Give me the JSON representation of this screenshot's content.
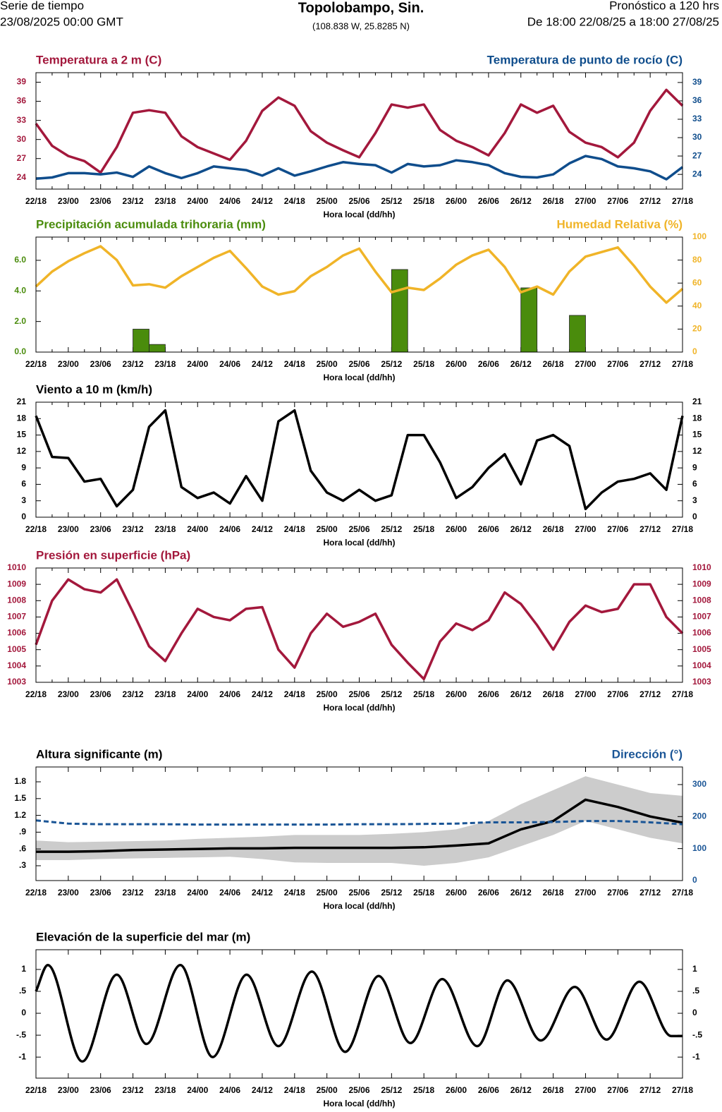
{
  "header": {
    "left_top": "Serie de tiempo",
    "left_bottom": "23/08/2025 00:00 GMT",
    "title": "Topolobampo, Sin.",
    "coords": "(108.838 W, 25.8285 N)",
    "right_top": "Pronóstico a 120 hrs",
    "right_bottom": "De 18:00 22/08/25 a 18:00 27/08/25"
  },
  "chart_data": [
    {
      "type": "line",
      "xlabel": "Hora local (dd/hh)",
      "categories": [
        "22/18",
        null,
        "23/00",
        null,
        "23/06",
        null,
        "23/12",
        null,
        "23/18",
        null,
        "24/00",
        null,
        "24/06",
        null,
        "24/12",
        null,
        "24/18",
        null,
        "25/00",
        null,
        "25/06",
        null,
        "25/12",
        null,
        "25/18",
        null,
        "26/00",
        null,
        "26/06",
        null,
        "26/12",
        null,
        "26/18",
        null,
        "27/00",
        null,
        "27/06",
        null,
        "27/12",
        null,
        "27/18"
      ],
      "ylim": [
        22.2,
        40.5
      ],
      "yticks": [
        24,
        27,
        30,
        33,
        36,
        39
      ],
      "y2lim": [
        21.6,
        40.6
      ],
      "y2ticks": [
        24,
        27,
        30,
        33,
        36,
        39
      ],
      "series": [
        {
          "name": "Temperatura a 2 m (C)",
          "color": "#a3183c",
          "values": [
            32.5,
            29,
            27.4,
            26.6,
            24.8,
            28.8,
            34.2,
            34.6,
            34.2,
            30.5,
            28.8,
            27.8,
            26.8,
            29.8,
            34.5,
            36.6,
            35.3,
            31.3,
            29.5,
            28.3,
            27.2,
            31,
            35.5,
            35,
            35.5,
            31.5,
            29.8,
            28.8,
            27.5,
            31,
            35.5,
            34.2,
            35.3,
            31.2,
            29.5,
            28.8,
            27.2,
            29.5,
            34.5,
            37.8,
            35.3
          ]
        },
        {
          "name": "Temperatura de punto de rocío (C)",
          "color": "#0f4d8c",
          "axis": "y2",
          "values": [
            23.3,
            23.5,
            24.2,
            24.2,
            24,
            24.3,
            23.6,
            25.3,
            24.2,
            23.4,
            24.2,
            25.3,
            25,
            24.7,
            23.8,
            25,
            23.8,
            24.5,
            25.3,
            26,
            25.7,
            25.5,
            24.3,
            25.7,
            25.3,
            25.5,
            26.3,
            26,
            25.5,
            24.2,
            23.6,
            23.5,
            24,
            25.8,
            27,
            26.5,
            25.3,
            25,
            24.5,
            23.2,
            25.2
          ]
        }
      ]
    },
    {
      "type": "bar",
      "xlabel": "Hora local (dd/hh)",
      "categories": [
        "22/18",
        null,
        "23/00",
        null,
        "23/06",
        null,
        "23/12",
        null,
        "23/18",
        null,
        "24/00",
        null,
        "24/06",
        null,
        "24/12",
        null,
        "24/18",
        null,
        "25/00",
        null,
        "25/06",
        null,
        "25/12",
        null,
        "25/18",
        null,
        "26/00",
        null,
        "26/06",
        null,
        "26/12",
        null,
        "26/18",
        null,
        "27/00",
        null,
        "27/06",
        null,
        "27/12",
        null,
        "27/18"
      ],
      "ylim": [
        0,
        7.52
      ],
      "yticks": [
        {
          "value": 0,
          "label": "0.0"
        },
        {
          "value": 2,
          "label": "2.0"
        },
        {
          "value": 4,
          "label": "4.0"
        },
        {
          "value": 6,
          "label": "6.0"
        }
      ],
      "y2lim": [
        0,
        100
      ],
      "y2ticks": [
        0,
        20,
        40,
        60,
        80,
        100
      ],
      "series": [
        {
          "name": "Precipitación acumulada trihoraria (mm)",
          "color": "#4a8c0c",
          "values": [
            0,
            0,
            0,
            0,
            0,
            0,
            1.5,
            0.5,
            0,
            0,
            0,
            0,
            0,
            0,
            0,
            0,
            0,
            0,
            0,
            0,
            0,
            0,
            5.4,
            0,
            0,
            0,
            0,
            0,
            0,
            0,
            4.2,
            0,
            0,
            2.4,
            0,
            0,
            0,
            0,
            0,
            0,
            0
          ]
        },
        {
          "name": "Humedad Relativa (%)",
          "color": "#f0b428",
          "axis": "y2",
          "type": "line",
          "values": [
            57,
            70,
            79,
            86,
            92,
            80,
            58,
            59,
            56,
            66,
            74,
            82,
            88,
            73,
            57,
            50,
            53,
            66,
            74,
            84,
            90,
            70,
            52,
            56,
            54,
            64,
            76,
            84,
            89,
            74,
            52,
            57,
            50,
            70,
            83,
            87,
            91,
            75,
            57,
            43,
            55
          ]
        }
      ]
    },
    {
      "type": "line",
      "xlabel": "Hora local (dd/hh)",
      "categories": [
        "22/18",
        null,
        "23/00",
        null,
        "23/06",
        null,
        "23/12",
        null,
        "23/18",
        null,
        "24/00",
        null,
        "24/06",
        null,
        "24/12",
        null,
        "24/18",
        null,
        "25/00",
        null,
        "25/06",
        null,
        "25/12",
        null,
        "25/18",
        null,
        "26/00",
        null,
        "26/06",
        null,
        "26/12",
        null,
        "26/18",
        null,
        "27/00",
        null,
        "27/06",
        null,
        "27/12",
        null,
        "27/18"
      ],
      "ylim": [
        0,
        21
      ],
      "yticks": [
        0,
        3,
        6,
        9,
        12,
        15,
        18,
        21
      ],
      "y2lim": [
        0,
        21
      ],
      "y2ticks": [
        0,
        3,
        6,
        9,
        12,
        15,
        18,
        21
      ],
      "series": [
        {
          "name": "Viento a 10 m (km/h)",
          "color": "#000000",
          "values": [
            18.5,
            11,
            10.8,
            6.5,
            7,
            2,
            5,
            16.5,
            19.5,
            5.5,
            3.5,
            4.5,
            2.5,
            7.5,
            3,
            17.5,
            19.5,
            8.5,
            4.5,
            3,
            5,
            3,
            4,
            15,
            15,
            10,
            3.5,
            5.5,
            9,
            11.5,
            6,
            14,
            15,
            13,
            1.5,
            4.5,
            6.5,
            7,
            8,
            5,
            18.5
          ]
        }
      ]
    },
    {
      "type": "line",
      "xlabel": "Hora local (dd/hh)",
      "categories": [
        "22/18",
        null,
        "23/00",
        null,
        "23/06",
        null,
        "23/12",
        null,
        "23/18",
        null,
        "24/00",
        null,
        "24/06",
        null,
        "24/12",
        null,
        "24/18",
        null,
        "25/00",
        null,
        "25/06",
        null,
        "25/12",
        null,
        "25/18",
        null,
        "26/00",
        null,
        "26/06",
        null,
        "26/12",
        null,
        "26/18",
        null,
        "27/00",
        null,
        "27/06",
        null,
        "27/12",
        null,
        "27/18"
      ],
      "ylim": [
        1003,
        1010
      ],
      "yticks": [
        1003,
        1004,
        1005,
        1006,
        1007,
        1008,
        1009,
        1010
      ],
      "y2lim": [
        1003,
        1010
      ],
      "y2ticks": [
        1003,
        1004,
        1005,
        1006,
        1007,
        1008,
        1009,
        1010
      ],
      "series": [
        {
          "name": "Presión en superficie (hPa)",
          "color": "#a3183c",
          "values": [
            1005.3,
            1008,
            1009.3,
            1008.7,
            1008.5,
            1009.3,
            1007.3,
            1005.2,
            1004.3,
            1006,
            1007.5,
            1007,
            1006.8,
            1007.5,
            1007.6,
            1005,
            1003.9,
            1006,
            1007.2,
            1006.4,
            1006.7,
            1007.2,
            1005.3,
            1004.2,
            1003.2,
            1005.5,
            1006.6,
            1006.2,
            1006.8,
            1008.5,
            1007.8,
            1006.5,
            1005,
            1006.7,
            1007.7,
            1007.3,
            1007.5,
            1009,
            1009,
            1007,
            1006
          ]
        }
      ]
    },
    {
      "type": "line",
      "xlabel": "Hora local (dd/hh)",
      "categories": [
        "22/18",
        "23/00",
        "23/06",
        "23/12",
        "23/18",
        "24/00",
        "24/06",
        "24/12",
        "24/18",
        "25/00",
        "25/06",
        "25/12",
        "25/18",
        "26/00",
        "26/06",
        "26/12",
        "26/18",
        "27/00",
        "27/06",
        "27/12",
        "27/18"
      ],
      "ylim": [
        0.035,
        2.065
      ],
      "yticks": [
        {
          "value": 0.3,
          "label": ".3"
        },
        {
          "value": 0.6,
          "label": ".6"
        },
        {
          "value": 0.9,
          "label": ".9"
        },
        1.2,
        1.5,
        1.8
      ],
      "y2lim": [
        0,
        355
      ],
      "y2ticks": [
        0,
        100,
        200,
        300
      ],
      "band": {
        "color": "#cccccc",
        "lower": [
          0.4,
          0.4,
          0.42,
          0.43,
          0.44,
          0.45,
          0.46,
          0.42,
          0.36,
          0.35,
          0.35,
          0.35,
          0.3,
          0.35,
          0.45,
          0.65,
          0.85,
          1.1,
          0.95,
          0.8,
          0.7
        ],
        "upper": [
          0.75,
          0.72,
          0.73,
          0.74,
          0.75,
          0.78,
          0.8,
          0.82,
          0.85,
          0.85,
          0.85,
          0.87,
          0.9,
          0.95,
          1.1,
          1.4,
          1.65,
          1.9,
          1.75,
          1.6,
          1.55
        ]
      },
      "series": [
        {
          "name": "Altura significante (m)",
          "color": "#000000",
          "values": [
            0.55,
            0.55,
            0.56,
            0.58,
            0.59,
            0.6,
            0.61,
            0.61,
            0.62,
            0.62,
            0.62,
            0.62,
            0.63,
            0.66,
            0.7,
            0.95,
            1.1,
            1.48,
            1.35,
            1.18,
            1.07
          ]
        },
        {
          "name": "Dirección (°)",
          "color": "#1a5596",
          "axis": "y2",
          "dashed": true,
          "values": [
            188,
            178,
            176,
            176,
            176,
            175,
            175,
            175,
            175,
            175,
            176,
            176,
            177,
            178,
            182,
            182,
            183,
            186,
            186,
            182,
            176
          ]
        }
      ]
    },
    {
      "type": "line",
      "smooth": true,
      "xlabel": "Hora local (dd/hh)",
      "xlim": [
        0,
        120
      ],
      "xticks": [
        {
          "value": 0,
          "label": "22/18"
        },
        {
          "value": 6,
          "label": "23/00"
        },
        {
          "value": 12,
          "label": "23/06"
        },
        {
          "value": 18,
          "label": "23/12"
        },
        {
          "value": 24,
          "label": "23/18"
        },
        {
          "value": 30,
          "label": "24/00"
        },
        {
          "value": 36,
          "label": "24/06"
        },
        {
          "value": 42,
          "label": "24/12"
        },
        {
          "value": 48,
          "label": "24/18"
        },
        {
          "value": 54,
          "label": "25/00"
        },
        {
          "value": 60,
          "label": "25/06"
        },
        {
          "value": 66,
          "label": "25/12"
        },
        {
          "value": 72,
          "label": "25/18"
        },
        {
          "value": 78,
          "label": "26/00"
        },
        {
          "value": 84,
          "label": "26/06"
        },
        {
          "value": 90,
          "label": "26/12"
        },
        {
          "value": 96,
          "label": "26/18"
        },
        {
          "value": 102,
          "label": "27/00"
        },
        {
          "value": 108,
          "label": "27/06"
        },
        {
          "value": 114,
          "label": "27/12"
        },
        {
          "value": 120,
          "label": "27/18"
        }
      ],
      "ylim": [
        -1.48,
        1.45
      ],
      "yticks": [
        -1,
        {
          "value": -0.5,
          "label": "-.5"
        },
        0,
        {
          "value": 0.5,
          "label": ".5"
        },
        1
      ],
      "y2lim": [
        -1.48,
        1.45
      ],
      "y2ticks": [
        -1,
        {
          "value": -0.5,
          "label": "-.5"
        },
        0,
        {
          "value": 0.5,
          "label": ".5"
        },
        1
      ],
      "series": [
        {
          "name": "Elevación de la superficie del mar (m)",
          "color": "#000000",
          "x": [
            0,
            2.2,
            8.6,
            15.0,
            20.5,
            26.8,
            32.8,
            39.1,
            45.0,
            51.2,
            57.4,
            63.6,
            69.5,
            75.4,
            81.9,
            87.5,
            93.7,
            100.0,
            105.9,
            112.0,
            117.9,
            120
          ],
          "values": [
            0.5,
            1.1,
            -1.1,
            0.88,
            -0.7,
            1.1,
            -1.0,
            0.88,
            -0.75,
            0.95,
            -0.88,
            0.85,
            -0.68,
            0.78,
            -0.75,
            0.75,
            -0.62,
            0.6,
            -0.6,
            0.72,
            -0.52,
            -0.52
          ]
        }
      ]
    }
  ]
}
